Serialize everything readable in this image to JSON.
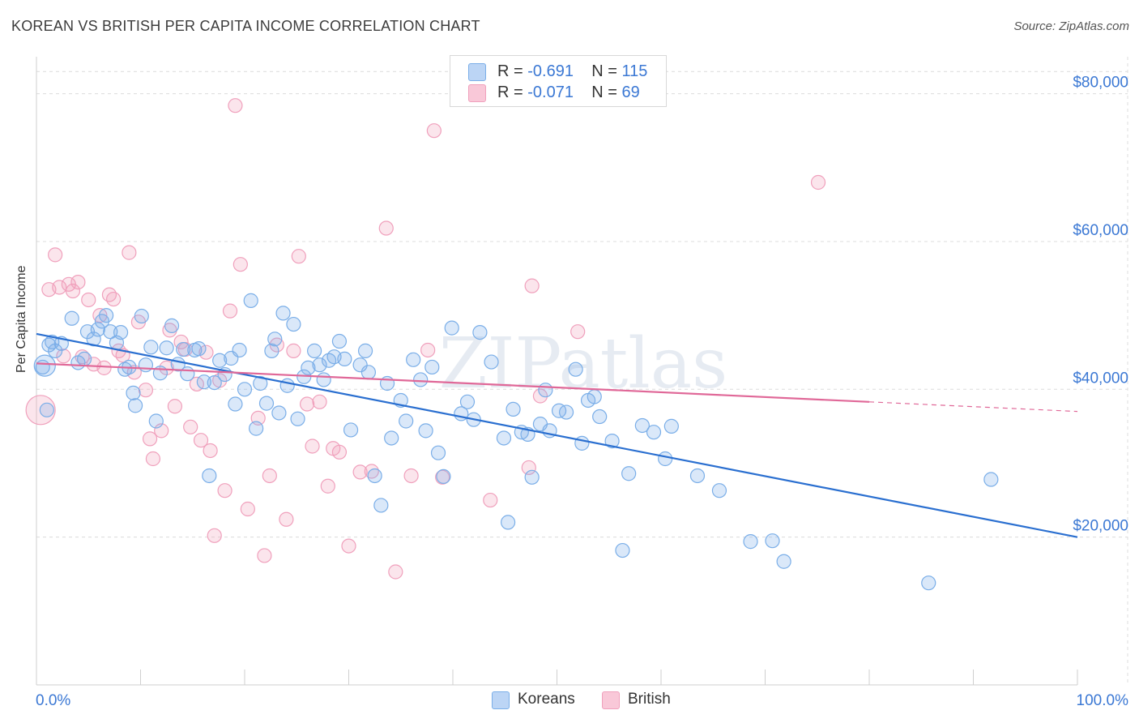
{
  "title": "KOREAN VS BRITISH PER CAPITA INCOME CORRELATION CHART",
  "source": "Source: ZipAtlas.com",
  "watermark": "ZIPatlas",
  "legend": {
    "rows": [
      {
        "r_label": "R =",
        "r_value": "-0.691",
        "n_label": "N =",
        "n_value": "115"
      },
      {
        "r_label": "R =",
        "r_value": "-0.071",
        "n_label": "N =",
        "n_value": "69"
      }
    ]
  },
  "bottom_legend": [
    "Koreans",
    "British"
  ],
  "chart_data": {
    "type": "scatter",
    "ylabel": "Per Capita Income",
    "xlim": [
      0,
      100
    ],
    "ylim": [
      0,
      85000
    ],
    "x_tick_labels": [
      "0.0%",
      "100.0%"
    ],
    "y_ticks": [
      20000,
      40000,
      60000,
      80000
    ],
    "y_tick_labels": [
      "$20,000",
      "$40,000",
      "$60,000",
      "$80,000"
    ],
    "grid": true,
    "colors": {
      "Koreans": "#7aaee8",
      "British": "#f0a0bc",
      "Koreans_line": "#2a6fd0",
      "British_line": "#e06898",
      "tick_text": "#3b78d4"
    },
    "series": [
      {
        "name": "Koreans",
        "trend": {
          "x0": 0,
          "y0": 47500,
          "x1": 100,
          "y1": 20000
        },
        "points": [
          [
            0.6,
            43000
          ],
          [
            1.2,
            46000
          ],
          [
            1.8,
            45200
          ],
          [
            2.4,
            46200
          ],
          [
            3.4,
            49600
          ],
          [
            4.0,
            43600
          ],
          [
            4.6,
            44100
          ],
          [
            4.9,
            47800
          ],
          [
            5.5,
            46800
          ],
          [
            5.9,
            48100
          ],
          [
            6.3,
            49200
          ],
          [
            6.7,
            50000
          ],
          [
            7.1,
            47800
          ],
          [
            7.7,
            46300
          ],
          [
            8.1,
            47700
          ],
          [
            8.5,
            42700
          ],
          [
            8.9,
            43000
          ],
          [
            9.3,
            39500
          ],
          [
            9.5,
            37800
          ],
          [
            10.1,
            49900
          ],
          [
            10.5,
            43300
          ],
          [
            11.0,
            45700
          ],
          [
            11.5,
            35700
          ],
          [
            11.9,
            42200
          ],
          [
            12.5,
            45600
          ],
          [
            13.0,
            48600
          ],
          [
            13.6,
            43400
          ],
          [
            14.1,
            45400
          ],
          [
            14.5,
            42100
          ],
          [
            15.2,
            45300
          ],
          [
            15.6,
            45500
          ],
          [
            16.1,
            41000
          ],
          [
            16.6,
            28300
          ],
          [
            17.1,
            40900
          ],
          [
            17.6,
            43900
          ],
          [
            18.1,
            42000
          ],
          [
            18.7,
            44200
          ],
          [
            19.1,
            38000
          ],
          [
            19.5,
            45300
          ],
          [
            20.0,
            40000
          ],
          [
            20.6,
            52000
          ],
          [
            21.1,
            34700
          ],
          [
            21.5,
            40800
          ],
          [
            22.1,
            38100
          ],
          [
            22.6,
            45200
          ],
          [
            22.9,
            46800
          ],
          [
            23.3,
            36800
          ],
          [
            23.7,
            50300
          ],
          [
            24.1,
            40500
          ],
          [
            24.7,
            48800
          ],
          [
            25.1,
            36000
          ],
          [
            25.7,
            41700
          ],
          [
            26.1,
            42900
          ],
          [
            26.7,
            45200
          ],
          [
            27.2,
            43300
          ],
          [
            27.6,
            41300
          ],
          [
            28.1,
            43900
          ],
          [
            28.6,
            44400
          ],
          [
            29.1,
            46500
          ],
          [
            29.6,
            44100
          ],
          [
            30.2,
            34500
          ],
          [
            31.1,
            43300
          ],
          [
            31.6,
            45200
          ],
          [
            31.9,
            42300
          ],
          [
            32.5,
            28300
          ],
          [
            33.1,
            24300
          ],
          [
            33.7,
            40800
          ],
          [
            34.1,
            33400
          ],
          [
            35.0,
            38500
          ],
          [
            35.5,
            35700
          ],
          [
            36.2,
            44000
          ],
          [
            36.9,
            41300
          ],
          [
            37.4,
            34400
          ],
          [
            38.0,
            43000
          ],
          [
            38.6,
            31400
          ],
          [
            39.1,
            28200
          ],
          [
            39.9,
            48300
          ],
          [
            40.8,
            36700
          ],
          [
            41.4,
            38300
          ],
          [
            42.0,
            35900
          ],
          [
            42.6,
            47700
          ],
          [
            43.7,
            43700
          ],
          [
            44.9,
            33400
          ],
          [
            45.3,
            22000
          ],
          [
            45.8,
            37300
          ],
          [
            46.6,
            34200
          ],
          [
            47.2,
            33900
          ],
          [
            47.6,
            28100
          ],
          [
            48.4,
            35300
          ],
          [
            48.9,
            39900
          ],
          [
            49.3,
            34400
          ],
          [
            50.2,
            37100
          ],
          [
            50.9,
            36900
          ],
          [
            51.8,
            42700
          ],
          [
            52.4,
            32700
          ],
          [
            53.0,
            38500
          ],
          [
            53.6,
            39000
          ],
          [
            54.1,
            36300
          ],
          [
            55.3,
            33000
          ],
          [
            56.3,
            18200
          ],
          [
            56.9,
            28600
          ],
          [
            58.2,
            35100
          ],
          [
            59.3,
            34200
          ],
          [
            60.4,
            30600
          ],
          [
            61.0,
            35000
          ],
          [
            63.5,
            28300
          ],
          [
            65.6,
            26300
          ],
          [
            68.6,
            19400
          ],
          [
            70.7,
            19500
          ],
          [
            71.8,
            16700
          ],
          [
            85.7,
            13800
          ],
          [
            91.7,
            27800
          ],
          [
            0.8,
            43200
          ],
          [
            1.0,
            37200
          ],
          [
            1.5,
            46400
          ]
        ]
      },
      {
        "name": "British",
        "trend": {
          "x0": 0,
          "y0": 43500,
          "x1": 80,
          "y1": 38300,
          "dash_to_x": 100,
          "dash_to_y": 37000
        },
        "points": [
          [
            0.4,
            37200
          ],
          [
            1.2,
            53500
          ],
          [
            1.8,
            58200
          ],
          [
            2.2,
            53800
          ],
          [
            2.6,
            44500
          ],
          [
            3.1,
            54200
          ],
          [
            3.5,
            53300
          ],
          [
            4.0,
            54500
          ],
          [
            4.4,
            44400
          ],
          [
            5.0,
            52100
          ],
          [
            5.5,
            43400
          ],
          [
            6.1,
            50000
          ],
          [
            6.5,
            42900
          ],
          [
            7.0,
            52800
          ],
          [
            7.4,
            52200
          ],
          [
            7.9,
            45200
          ],
          [
            8.3,
            44600
          ],
          [
            8.9,
            58500
          ],
          [
            9.4,
            42300
          ],
          [
            9.8,
            49100
          ],
          [
            10.5,
            39900
          ],
          [
            10.9,
            33300
          ],
          [
            11.2,
            30600
          ],
          [
            12.0,
            34400
          ],
          [
            12.5,
            42900
          ],
          [
            12.8,
            48000
          ],
          [
            13.3,
            37700
          ],
          [
            13.9,
            46400
          ],
          [
            14.3,
            45400
          ],
          [
            14.8,
            34900
          ],
          [
            15.4,
            40700
          ],
          [
            15.8,
            33100
          ],
          [
            16.3,
            45000
          ],
          [
            16.7,
            31700
          ],
          [
            17.1,
            20200
          ],
          [
            17.6,
            41200
          ],
          [
            18.1,
            26300
          ],
          [
            18.6,
            50600
          ],
          [
            19.1,
            78400
          ],
          [
            19.6,
            56900
          ],
          [
            20.3,
            23800
          ],
          [
            21.3,
            36100
          ],
          [
            21.9,
            17500
          ],
          [
            22.4,
            28300
          ],
          [
            23.1,
            46000
          ],
          [
            24.0,
            22400
          ],
          [
            24.7,
            45200
          ],
          [
            25.2,
            58000
          ],
          [
            26.0,
            38000
          ],
          [
            26.5,
            32300
          ],
          [
            27.2,
            38300
          ],
          [
            28.0,
            26900
          ],
          [
            28.5,
            32000
          ],
          [
            29.1,
            31500
          ],
          [
            30.0,
            18800
          ],
          [
            31.1,
            28800
          ],
          [
            32.2,
            28900
          ],
          [
            33.6,
            61800
          ],
          [
            34.5,
            15300
          ],
          [
            36.0,
            28300
          ],
          [
            37.6,
            45300
          ],
          [
            38.2,
            75000
          ],
          [
            39.0,
            28100
          ],
          [
            43.6,
            25000
          ],
          [
            47.3,
            29400
          ],
          [
            47.6,
            54000
          ],
          [
            48.4,
            39100
          ],
          [
            52.0,
            47800
          ],
          [
            75.1,
            68000
          ]
        ]
      }
    ]
  }
}
